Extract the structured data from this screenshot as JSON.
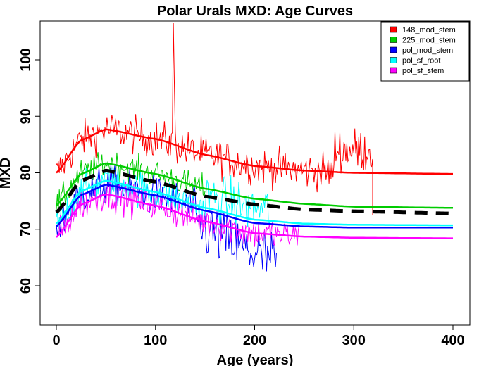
{
  "chart_data": {
    "type": "line",
    "title": "Polar Urals MXD: Age Curves",
    "xlabel": "Age (years)",
    "ylabel": "MXD",
    "xlim": [
      -16,
      417
    ],
    "ylim": [
      53,
      107
    ],
    "xticks": [
      0,
      100,
      200,
      300,
      400
    ],
    "yticks": [
      60,
      70,
      80,
      90,
      100
    ],
    "grid": false,
    "legend": {
      "position": "top-right",
      "entries": [
        {
          "label": "148_mod_stem",
          "color": "#ff0000"
        },
        {
          "label": "225_mod_stem",
          "color": "#00cc00"
        },
        {
          "label": "pol_mod_stem",
          "color": "#0000ff"
        },
        {
          "label": "pol_sf_root",
          "color": "#00ffff"
        },
        {
          "label": "pol_sf_stem",
          "color": "#ff00ff"
        }
      ]
    },
    "series": [
      {
        "name": "148_mod_stem",
        "kind": "raw",
        "color": "#ff0000",
        "x_range": [
          0,
          319
        ],
        "mean_shift": 0,
        "noise": 3.0,
        "spike": {
          "x": 118,
          "y": 106.5
        }
      },
      {
        "name": "225_mod_stem",
        "kind": "raw",
        "color": "#00cc00",
        "x_range": [
          0,
          150
        ],
        "noise": 2.2
      },
      {
        "name": "pol_mod_stem",
        "kind": "raw",
        "color": "#0000ff",
        "x_range": [
          0,
          222
        ],
        "noise": 3.2
      },
      {
        "name": "pol_sf_root",
        "kind": "raw",
        "color": "#00ffff",
        "x_range": [
          0,
          215
        ],
        "noise": 2.8
      },
      {
        "name": "pol_sf_stem",
        "kind": "raw",
        "color": "#ff00ff",
        "x_range": [
          0,
          245
        ],
        "noise": 2.6
      },
      {
        "name": "148_mod_stem curve",
        "kind": "curve",
        "color": "#ff0000",
        "x": [
          0,
          25,
          50,
          100,
          150,
          200,
          250,
          300,
          400
        ],
        "y": [
          80.0,
          85.8,
          87.7,
          86.0,
          83.2,
          81.2,
          80.4,
          80.0,
          79.8
        ]
      },
      {
        "name": "225_mod_stem curve",
        "kind": "curve",
        "color": "#00cc00",
        "x": [
          0,
          25,
          50,
          100,
          150,
          200,
          250,
          300,
          400
        ],
        "y": [
          74.2,
          79.8,
          81.7,
          79.8,
          77.2,
          75.4,
          74.5,
          74.0,
          73.8
        ]
      },
      {
        "name": "pol_sf_root curve",
        "kind": "curve",
        "color": "#00ffff",
        "x": [
          0,
          25,
          50,
          100,
          150,
          200,
          250,
          300,
          400
        ],
        "y": [
          71.0,
          76.8,
          78.6,
          76.6,
          73.8,
          71.7,
          71.0,
          70.8,
          70.7
        ]
      },
      {
        "name": "pol_mod_stem curve",
        "kind": "curve",
        "color": "#0000ff",
        "x": [
          0,
          25,
          50,
          100,
          150,
          200,
          250,
          300,
          400
        ],
        "y": [
          70.5,
          76.1,
          77.9,
          76.0,
          73.3,
          71.1,
          70.5,
          70.3,
          70.3
        ]
      },
      {
        "name": "pol_sf_stem curve",
        "kind": "curve",
        "color": "#ff00ff",
        "x": [
          0,
          25,
          50,
          100,
          150,
          200,
          250,
          300,
          400
        ],
        "y": [
          68.6,
          74.4,
          76.2,
          74.2,
          71.4,
          69.3,
          68.7,
          68.5,
          68.4
        ]
      },
      {
        "name": "mean curve",
        "kind": "curve-dashed",
        "color": "#000000",
        "x": [
          0,
          25,
          50,
          100,
          150,
          200,
          250,
          300,
          400
        ],
        "y": [
          73.0,
          78.6,
          80.4,
          78.4,
          75.8,
          74.4,
          73.5,
          73.2,
          72.8
        ]
      }
    ]
  }
}
